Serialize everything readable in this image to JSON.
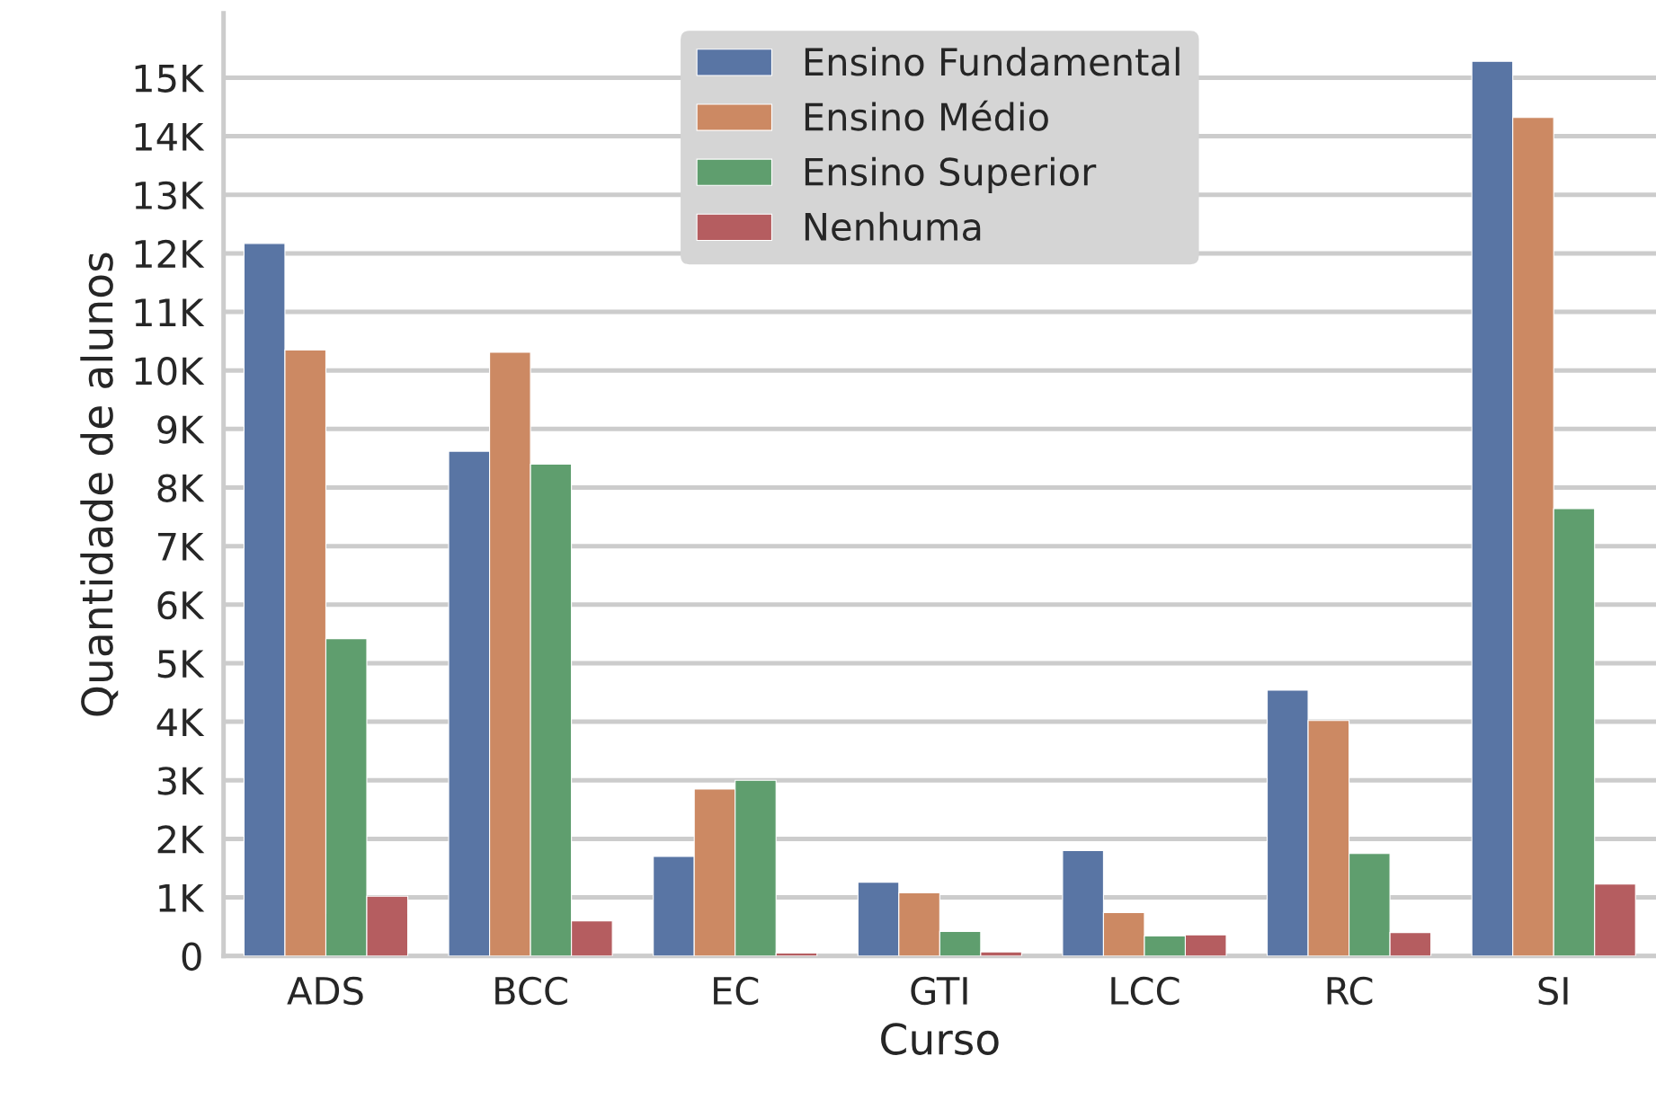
{
  "chart_data": {
    "type": "bar",
    "xlabel": "Curso",
    "ylabel": "Quantidade de alunos",
    "categories": [
      "ADS",
      "BCC",
      "EC",
      "GTI",
      "LCC",
      "RC",
      "SI"
    ],
    "series": [
      {
        "name": "Ensino Fundamental",
        "color": "#5975a4",
        "values": [
          12170,
          8620,
          1700,
          1260,
          1800,
          4540,
          15280
        ]
      },
      {
        "name": "Ensino Médio",
        "color": "#cc8963",
        "values": [
          10350,
          10310,
          2850,
          1080,
          740,
          4020,
          14320
        ]
      },
      {
        "name": "Ensino Superior",
        "color": "#5f9e6e",
        "values": [
          5420,
          8400,
          3000,
          420,
          340,
          1750,
          7640
        ]
      },
      {
        "name": "Nenhuma",
        "color": "#b55d60",
        "values": [
          1020,
          600,
          50,
          70,
          360,
          400,
          1230
        ]
      }
    ],
    "ylim": [
      0,
      16100
    ],
    "yticks": [
      0,
      {
        "value": 1000,
        "label": "1K"
      },
      {
        "value": 2000,
        "label": "2K"
      },
      {
        "value": 3000,
        "label": "3K"
      },
      {
        "value": 4000,
        "label": "4K"
      },
      {
        "value": 5000,
        "label": "5K"
      },
      {
        "value": 6000,
        "label": "6K"
      },
      {
        "value": 7000,
        "label": "7K"
      },
      {
        "value": 8000,
        "label": "8K"
      },
      {
        "value": 9000,
        "label": "9K"
      },
      {
        "value": 10000,
        "label": "10K"
      },
      {
        "value": 11000,
        "label": "11K"
      },
      {
        "value": 12000,
        "label": "12K"
      },
      {
        "value": 13000,
        "label": "13K"
      },
      {
        "value": 14000,
        "label": "14K"
      },
      {
        "value": 15000,
        "label": "15K"
      }
    ],
    "grid": "y",
    "legend": "top"
  }
}
